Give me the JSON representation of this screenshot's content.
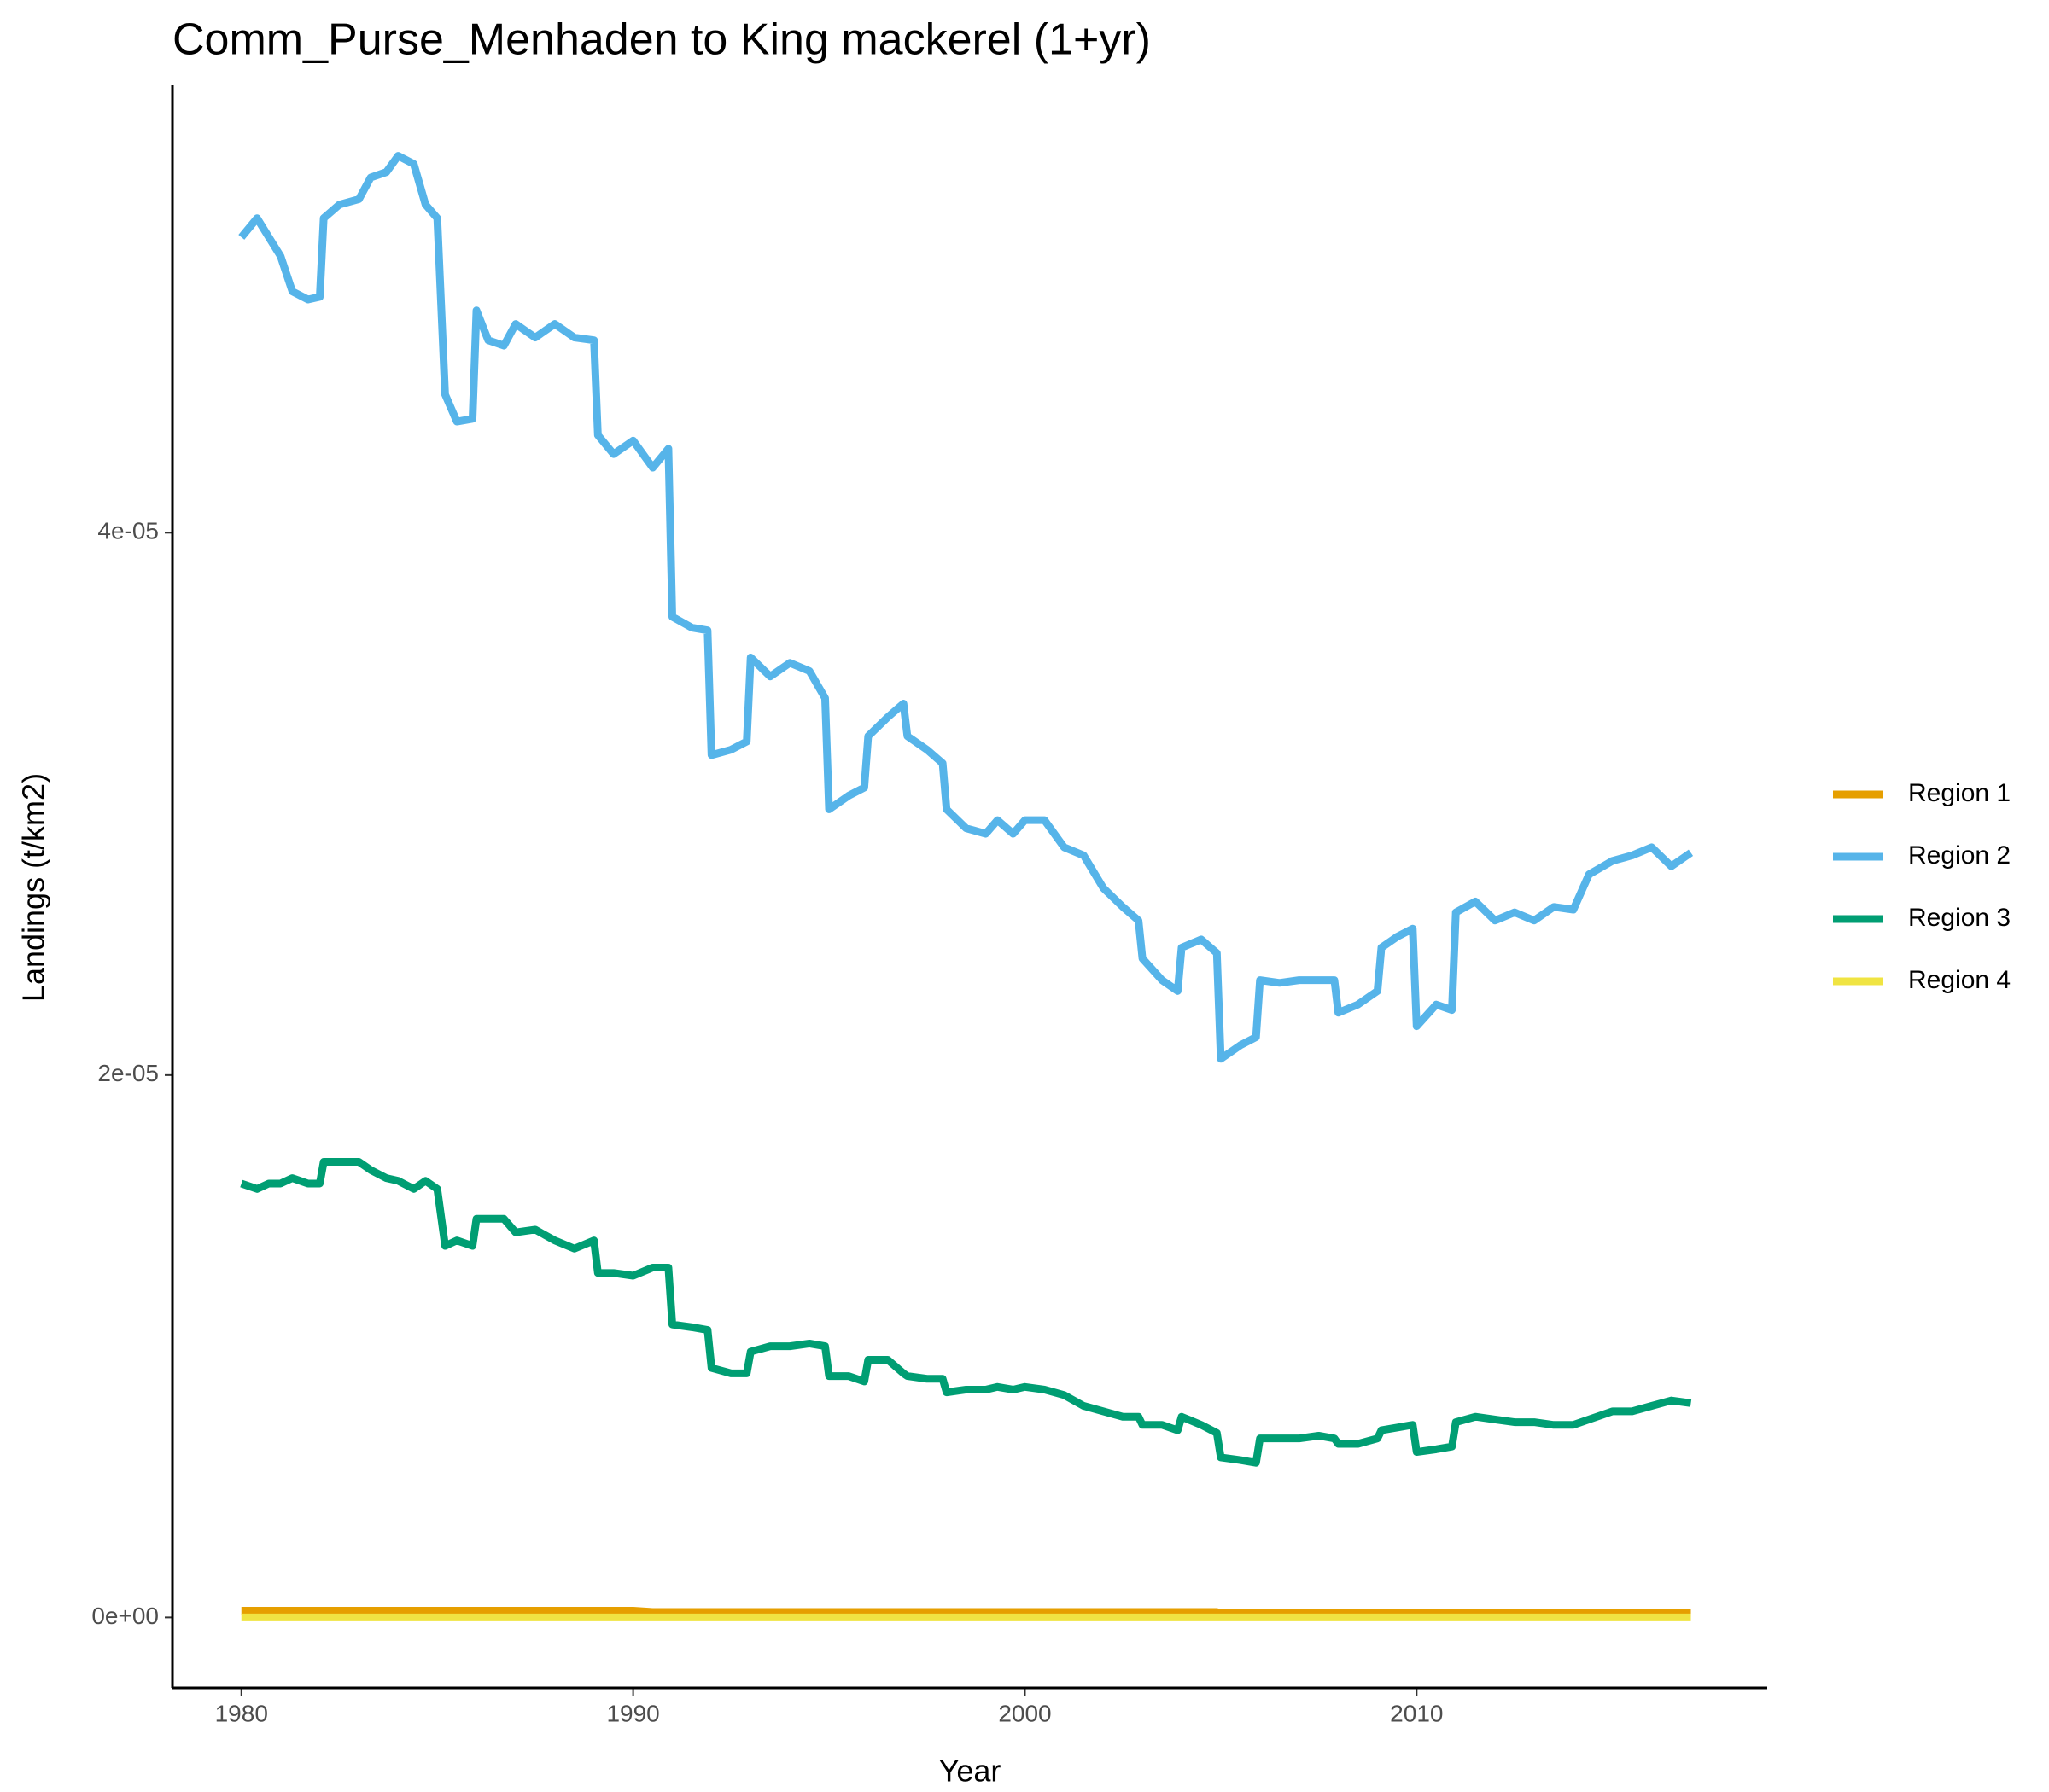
{
  "chart_data": {
    "type": "line",
    "title": "Comm_Purse_Menhaden to King mackerel (1+yr)",
    "x_label": "Year",
    "y_label": "Landings (t/km2)",
    "x": [
      1980.0,
      1980.4,
      1980.7,
      1981.0,
      1981.3,
      1981.7,
      1982.0,
      1982.1,
      1982.5,
      1983.0,
      1983.3,
      1983.7,
      1984.0,
      1984.4,
      1984.7,
      1985.0,
      1985.2,
      1985.5,
      1985.9,
      1986.0,
      1986.3,
      1986.7,
      1987.0,
      1987.5,
      1988.0,
      1988.5,
      1989.0,
      1989.1,
      1989.5,
      1990.0,
      1990.5,
      1990.9,
      1991.0,
      1991.5,
      1991.9,
      1992.0,
      1992.5,
      1992.9,
      1993.0,
      1993.5,
      1994.0,
      1994.5,
      1994.9,
      1995.0,
      1995.5,
      1995.9,
      1996.0,
      1996.5,
      1996.9,
      1997.0,
      1997.5,
      1997.9,
      1998.0,
      1998.5,
      1999.0,
      1999.3,
      1999.7,
      2000.0,
      2000.5,
      2001.0,
      2001.5,
      2002.0,
      2002.5,
      2002.9,
      2003.0,
      2003.5,
      2003.9,
      2004.0,
      2004.5,
      2004.9,
      2005.0,
      2005.5,
      2005.9,
      2006.0,
      2006.5,
      2007.0,
      2007.5,
      2007.9,
      2008.0,
      2008.5,
      2009.0,
      2009.1,
      2009.5,
      2009.9,
      2010.0,
      2010.5,
      2010.9,
      2011.0,
      2011.5,
      2012.0,
      2012.5,
      2013.0,
      2013.5,
      2014.0,
      2014.4,
      2015.0,
      2015.5,
      2016.0,
      2016.5,
      2017.0
    ],
    "series": [
      {
        "name": "Region 1",
        "color": "#E69F00",
        "values": [
          2.5e-07,
          2.5e-07,
          2.5e-07,
          2.5e-07,
          2.5e-07,
          2.5e-07,
          2.5e-07,
          2.5e-07,
          2.5e-07,
          2.5e-07,
          2.5e-07,
          2.5e-07,
          2.5e-07,
          2.5e-07,
          2.5e-07,
          2.5e-07,
          2.5e-07,
          2.5e-07,
          2.5e-07,
          2.5e-07,
          2.5e-07,
          2.5e-07,
          2.5e-07,
          2.5e-07,
          2.5e-07,
          2.5e-07,
          2.5e-07,
          2.5e-07,
          2.5e-07,
          2.5e-07,
          2e-07,
          2e-07,
          2e-07,
          2e-07,
          2e-07,
          2e-07,
          2e-07,
          2e-07,
          2e-07,
          2e-07,
          2e-07,
          2e-07,
          2e-07,
          2e-07,
          2e-07,
          2e-07,
          2e-07,
          2e-07,
          2e-07,
          2e-07,
          2e-07,
          2e-07,
          2e-07,
          2e-07,
          2e-07,
          2e-07,
          2e-07,
          2e-07,
          2e-07,
          2e-07,
          2e-07,
          2e-07,
          2e-07,
          2e-07,
          2e-07,
          2e-07,
          2e-07,
          2e-07,
          2e-07,
          2e-07,
          1.6e-07,
          1.6e-07,
          1.6e-07,
          1.6e-07,
          1.6e-07,
          1.6e-07,
          1.6e-07,
          1.6e-07,
          1.6e-07,
          1.6e-07,
          1.6e-07,
          1.6e-07,
          1.6e-07,
          1.6e-07,
          1.6e-07,
          1.6e-07,
          1.6e-07,
          1.6e-07,
          1.6e-07,
          1.6e-07,
          1.6e-07,
          1.6e-07,
          1.6e-07,
          1.6e-07,
          1.6e-07,
          1.6e-07,
          1.6e-07,
          1.6e-07,
          1.6e-07,
          1.6e-07
        ]
      },
      {
        "name": "Region 2",
        "color": "#56B4E9",
        "values": [
          5.09e-05,
          5.16e-05,
          5.09e-05,
          5.02e-05,
          4.89e-05,
          4.86e-05,
          4.87e-05,
          5.16e-05,
          5.21e-05,
          5.23e-05,
          5.31e-05,
          5.33e-05,
          5.39e-05,
          5.36e-05,
          5.21e-05,
          5.16e-05,
          4.51e-05,
          4.41e-05,
          4.42e-05,
          4.82e-05,
          4.71e-05,
          4.69e-05,
          4.77e-05,
          4.72e-05,
          4.77e-05,
          4.72e-05,
          4.71e-05,
          4.36e-05,
          4.29e-05,
          4.34e-05,
          4.24e-05,
          4.31e-05,
          3.69e-05,
          3.65e-05,
          3.64e-05,
          3.18e-05,
          3.2e-05,
          3.23e-05,
          3.54e-05,
          3.47e-05,
          3.52e-05,
          3.49e-05,
          3.39e-05,
          2.98e-05,
          3.03e-05,
          3.06e-05,
          3.25e-05,
          3.32e-05,
          3.37e-05,
          3.25e-05,
          3.2e-05,
          3.15e-05,
          2.98e-05,
          2.91e-05,
          2.89e-05,
          2.94e-05,
          2.89e-05,
          2.94e-05,
          2.94e-05,
          2.84e-05,
          2.81e-05,
          2.69e-05,
          2.62e-05,
          2.57e-05,
          2.43e-05,
          2.35e-05,
          2.31e-05,
          2.47e-05,
          2.5e-05,
          2.45e-05,
          2.06e-05,
          2.11e-05,
          2.14e-05,
          2.35e-05,
          2.34e-05,
          2.35e-05,
          2.35e-05,
          2.35e-05,
          2.23e-05,
          2.26e-05,
          2.31e-05,
          2.47e-05,
          2.51e-05,
          2.54e-05,
          2.18e-05,
          2.26e-05,
          2.24e-05,
          2.6e-05,
          2.64e-05,
          2.57e-05,
          2.6e-05,
          2.57e-05,
          2.62e-05,
          2.61e-05,
          2.74e-05,
          2.79e-05,
          2.81e-05,
          2.84e-05,
          2.77e-05,
          2.82e-05
        ]
      },
      {
        "name": "Region 3",
        "color": "#009E73",
        "values": [
          1.6e-05,
          1.58e-05,
          1.6e-05,
          1.6e-05,
          1.62e-05,
          1.6e-05,
          1.6e-05,
          1.68e-05,
          1.68e-05,
          1.68e-05,
          1.65e-05,
          1.62e-05,
          1.61e-05,
          1.58e-05,
          1.61e-05,
          1.58e-05,
          1.37e-05,
          1.39e-05,
          1.37e-05,
          1.47e-05,
          1.47e-05,
          1.47e-05,
          1.42e-05,
          1.43e-05,
          1.39e-05,
          1.36e-05,
          1.39e-05,
          1.27e-05,
          1.27e-05,
          1.26e-05,
          1.29e-05,
          1.29e-05,
          1.08e-05,
          1.07e-05,
          1.06e-05,
          9.2e-06,
          9e-06,
          9e-06,
          9.8e-06,
          1e-05,
          1e-05,
          1.01e-05,
          1e-05,
          8.9e-06,
          8.9e-06,
          8.7e-06,
          9.5e-06,
          9.5e-06,
          9e-06,
          8.9e-06,
          8.8e-06,
          8.8e-06,
          8.3e-06,
          8.4e-06,
          8.4e-06,
          8.5e-06,
          8.4e-06,
          8.5e-06,
          8.4e-06,
          8.2e-06,
          7.8e-06,
          7.6e-06,
          7.4e-06,
          7.4e-06,
          7.1e-06,
          7.1e-06,
          6.9e-06,
          7.4e-06,
          7.1e-06,
          6.8e-06,
          5.9e-06,
          5.8e-06,
          5.7e-06,
          6.6e-06,
          6.6e-06,
          6.6e-06,
          6.7e-06,
          6.6e-06,
          6.4e-06,
          6.4e-06,
          6.6e-06,
          6.9e-06,
          7e-06,
          7.1e-06,
          6.1e-06,
          6.2e-06,
          6.3e-06,
          7.2e-06,
          7.4e-06,
          7.3e-06,
          7.2e-06,
          7.2e-06,
          7.1e-06,
          7.1e-06,
          7.3e-06,
          7.6e-06,
          7.6e-06,
          7.8e-06,
          8e-06,
          7.9e-06
        ]
      },
      {
        "name": "Region 4",
        "color": "#F0E442",
        "values": [
          0,
          0,
          0,
          0,
          0,
          0,
          0,
          0,
          0,
          0,
          0,
          0,
          0,
          0,
          0,
          0,
          0,
          0,
          0,
          0,
          0,
          0,
          0,
          0,
          0,
          0,
          0,
          0,
          0,
          0,
          0,
          0,
          0,
          0,
          0,
          0,
          0,
          0,
          0,
          0,
          0,
          0,
          0,
          0,
          0,
          0,
          0,
          0,
          0,
          0,
          0,
          0,
          0,
          0,
          0,
          0,
          0,
          0,
          0,
          0,
          0,
          0,
          0,
          0,
          0,
          0,
          0,
          0,
          0,
          0,
          0,
          0,
          0,
          0,
          0,
          0,
          0,
          0,
          0,
          0,
          0,
          0,
          0,
          0,
          0,
          0,
          0,
          0,
          0,
          0,
          0,
          0,
          0,
          0,
          0,
          0,
          0,
          0,
          0,
          0
        ]
      }
    ],
    "xlim": [
      1978.24,
      2018.95
    ],
    "xticks": [
      1980,
      1990,
      2000,
      2010
    ],
    "ylim": [
      -2.6e-06,
      5.65e-05
    ],
    "yticks": [
      {
        "value": 0,
        "label": "0e+00"
      },
      {
        "value": 2e-05,
        "label": "2e-05"
      },
      {
        "value": 4e-05,
        "label": "4e-05"
      }
    ],
    "grid": false,
    "legend": "right"
  }
}
